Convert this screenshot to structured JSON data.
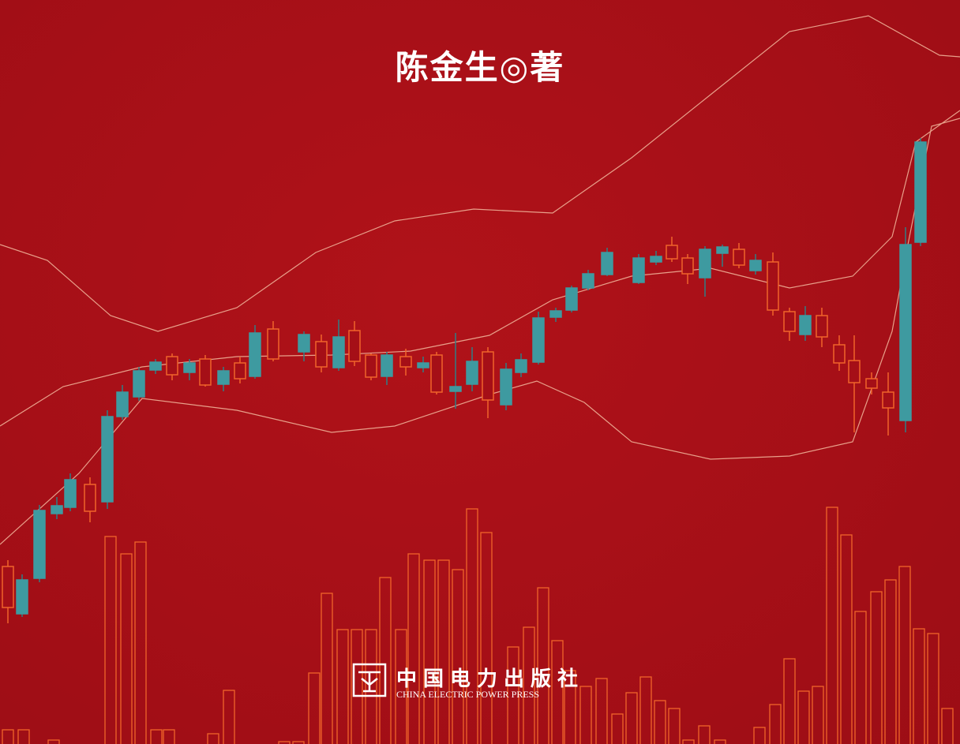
{
  "author": "陈金生◎著",
  "publisher": {
    "name_cn": "中国电力出版社",
    "name_en": "CHINA ELECTRIC POWER PRESS"
  }
}
